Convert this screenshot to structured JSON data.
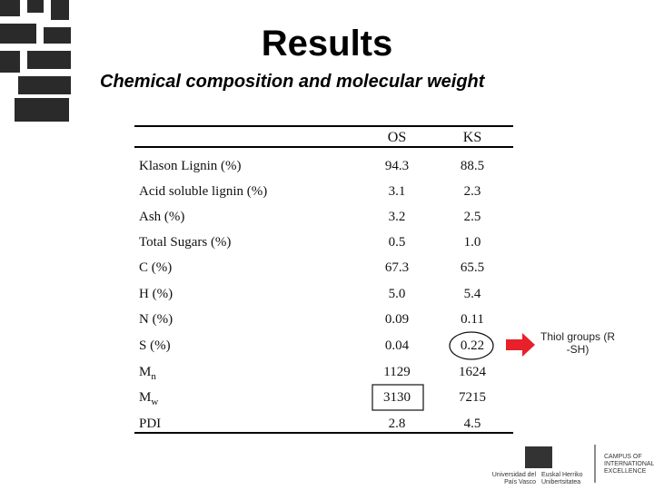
{
  "header": {
    "title": "Results",
    "subtitle": "Chemical composition and molecular weight"
  },
  "table": {
    "columns": [
      "OS",
      "KS"
    ],
    "rows": [
      {
        "label": "Klason Lignin (%)",
        "cells": [
          "94.3",
          "88.5"
        ]
      },
      {
        "label": "Acid soluble lignin (%)",
        "cells": [
          "3.1",
          "2.3"
        ]
      },
      {
        "label": "Ash (%)",
        "cells": [
          "3.2",
          "2.5"
        ]
      },
      {
        "label": "Total Sugars (%)",
        "cells": [
          "0.5",
          "1.0"
        ]
      },
      {
        "label": "C (%)",
        "cells": [
          "67.3",
          "65.5"
        ]
      },
      {
        "label": "H (%)",
        "cells": [
          "5.0",
          "5.4"
        ]
      },
      {
        "label": "N (%)",
        "cells": [
          "0.09",
          "0.11"
        ]
      },
      {
        "label": "S (%)",
        "cells": [
          "0.04",
          "0.22"
        ]
      },
      {
        "label": "M",
        "subscript": "n",
        "cells": [
          "1129",
          "1624"
        ]
      },
      {
        "label": "M",
        "subscript": "w",
        "cells": [
          "3130",
          "7215"
        ]
      },
      {
        "label": "PDI",
        "cells": [
          "2.8",
          "4.5"
        ]
      }
    ]
  },
  "annotation": [
    "Thiol groups (R",
    "-SH)"
  ],
  "footer": {
    "logo_left": "Universidad del País Vasco",
    "logo_right": "Euskal Herriko Unibertsitatea",
    "campus": "CAMPUS OF INTERNATIONAL EXCELLENCE"
  }
}
